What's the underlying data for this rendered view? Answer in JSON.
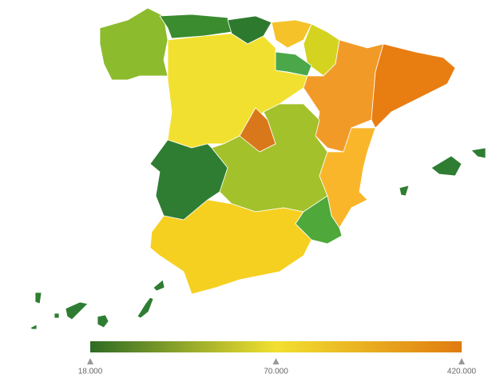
{
  "map": {
    "regions": [
      {
        "color": "#8dbb2e"
      },
      {
        "color": "#3a8c2e"
      },
      {
        "color": "#2d7a2e"
      },
      {
        "color": "#f5c22a"
      },
      {
        "color": "#d4d420"
      },
      {
        "color": "#4ba84a"
      },
      {
        "color": "#f2e030"
      },
      {
        "color": "#f29a28"
      },
      {
        "color": "#e87d12"
      },
      {
        "color": "#d9781a"
      },
      {
        "color": "#a3c12a"
      },
      {
        "color": "#2e7d32"
      },
      {
        "color": "#fab62a"
      },
      {
        "color": "#4ea83a"
      },
      {
        "color": "#f5d020"
      },
      {
        "color": "#2e7d32"
      },
      {
        "color": "#2e7d32"
      }
    ],
    "scale": {
      "colors": [
        "#2e6b24",
        "#f2e030",
        "#e07b10"
      ],
      "ticks": [
        {
          "value": 18000,
          "label": "18.000"
        },
        {
          "value": 70000,
          "label": "70.000"
        },
        {
          "value": 420000,
          "label": "420.000"
        }
      ]
    }
  }
}
